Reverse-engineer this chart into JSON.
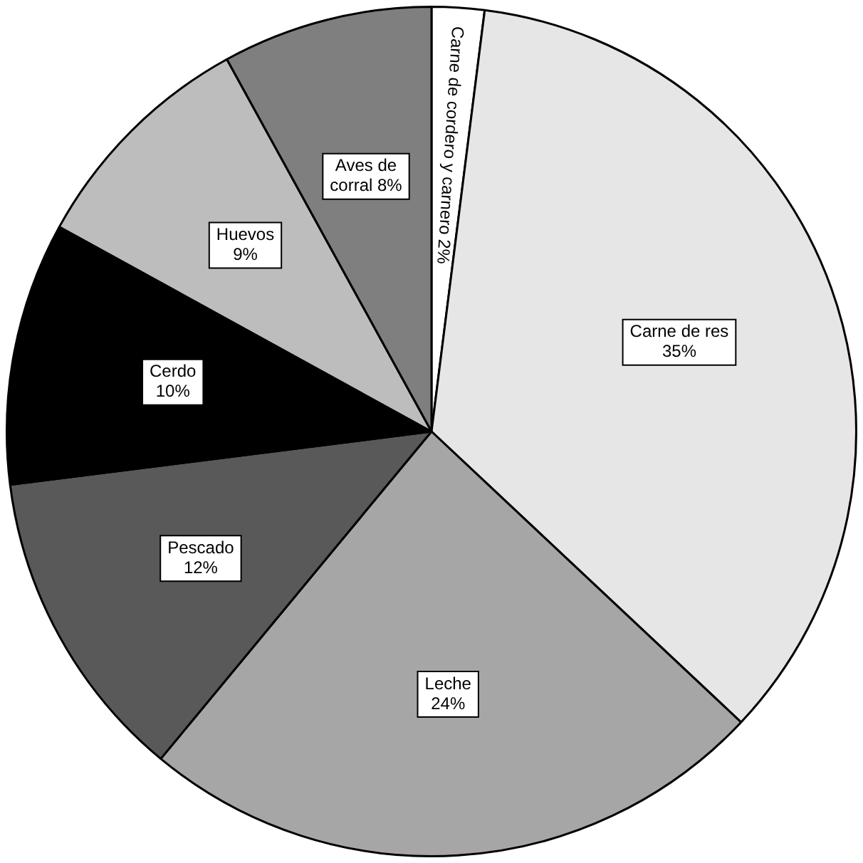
{
  "chart_data": {
    "type": "pie",
    "categories": [
      "Carne de cordero y carnero",
      "Carne de res",
      "Leche",
      "Pescado",
      "Cerdo",
      "Huevos",
      "Aves de corral"
    ],
    "values": [
      2,
      35,
      24,
      12,
      10,
      9,
      8
    ],
    "value_labels": [
      "2%",
      "35%",
      "24%",
      "12%",
      "10%",
      "9%",
      "8%"
    ],
    "colors": [
      "#ffffff",
      "#e6e6e6",
      "#a6a6a6",
      "#595959",
      "#000000",
      "#bdbdbd",
      "#7f7f7f"
    ]
  }
}
